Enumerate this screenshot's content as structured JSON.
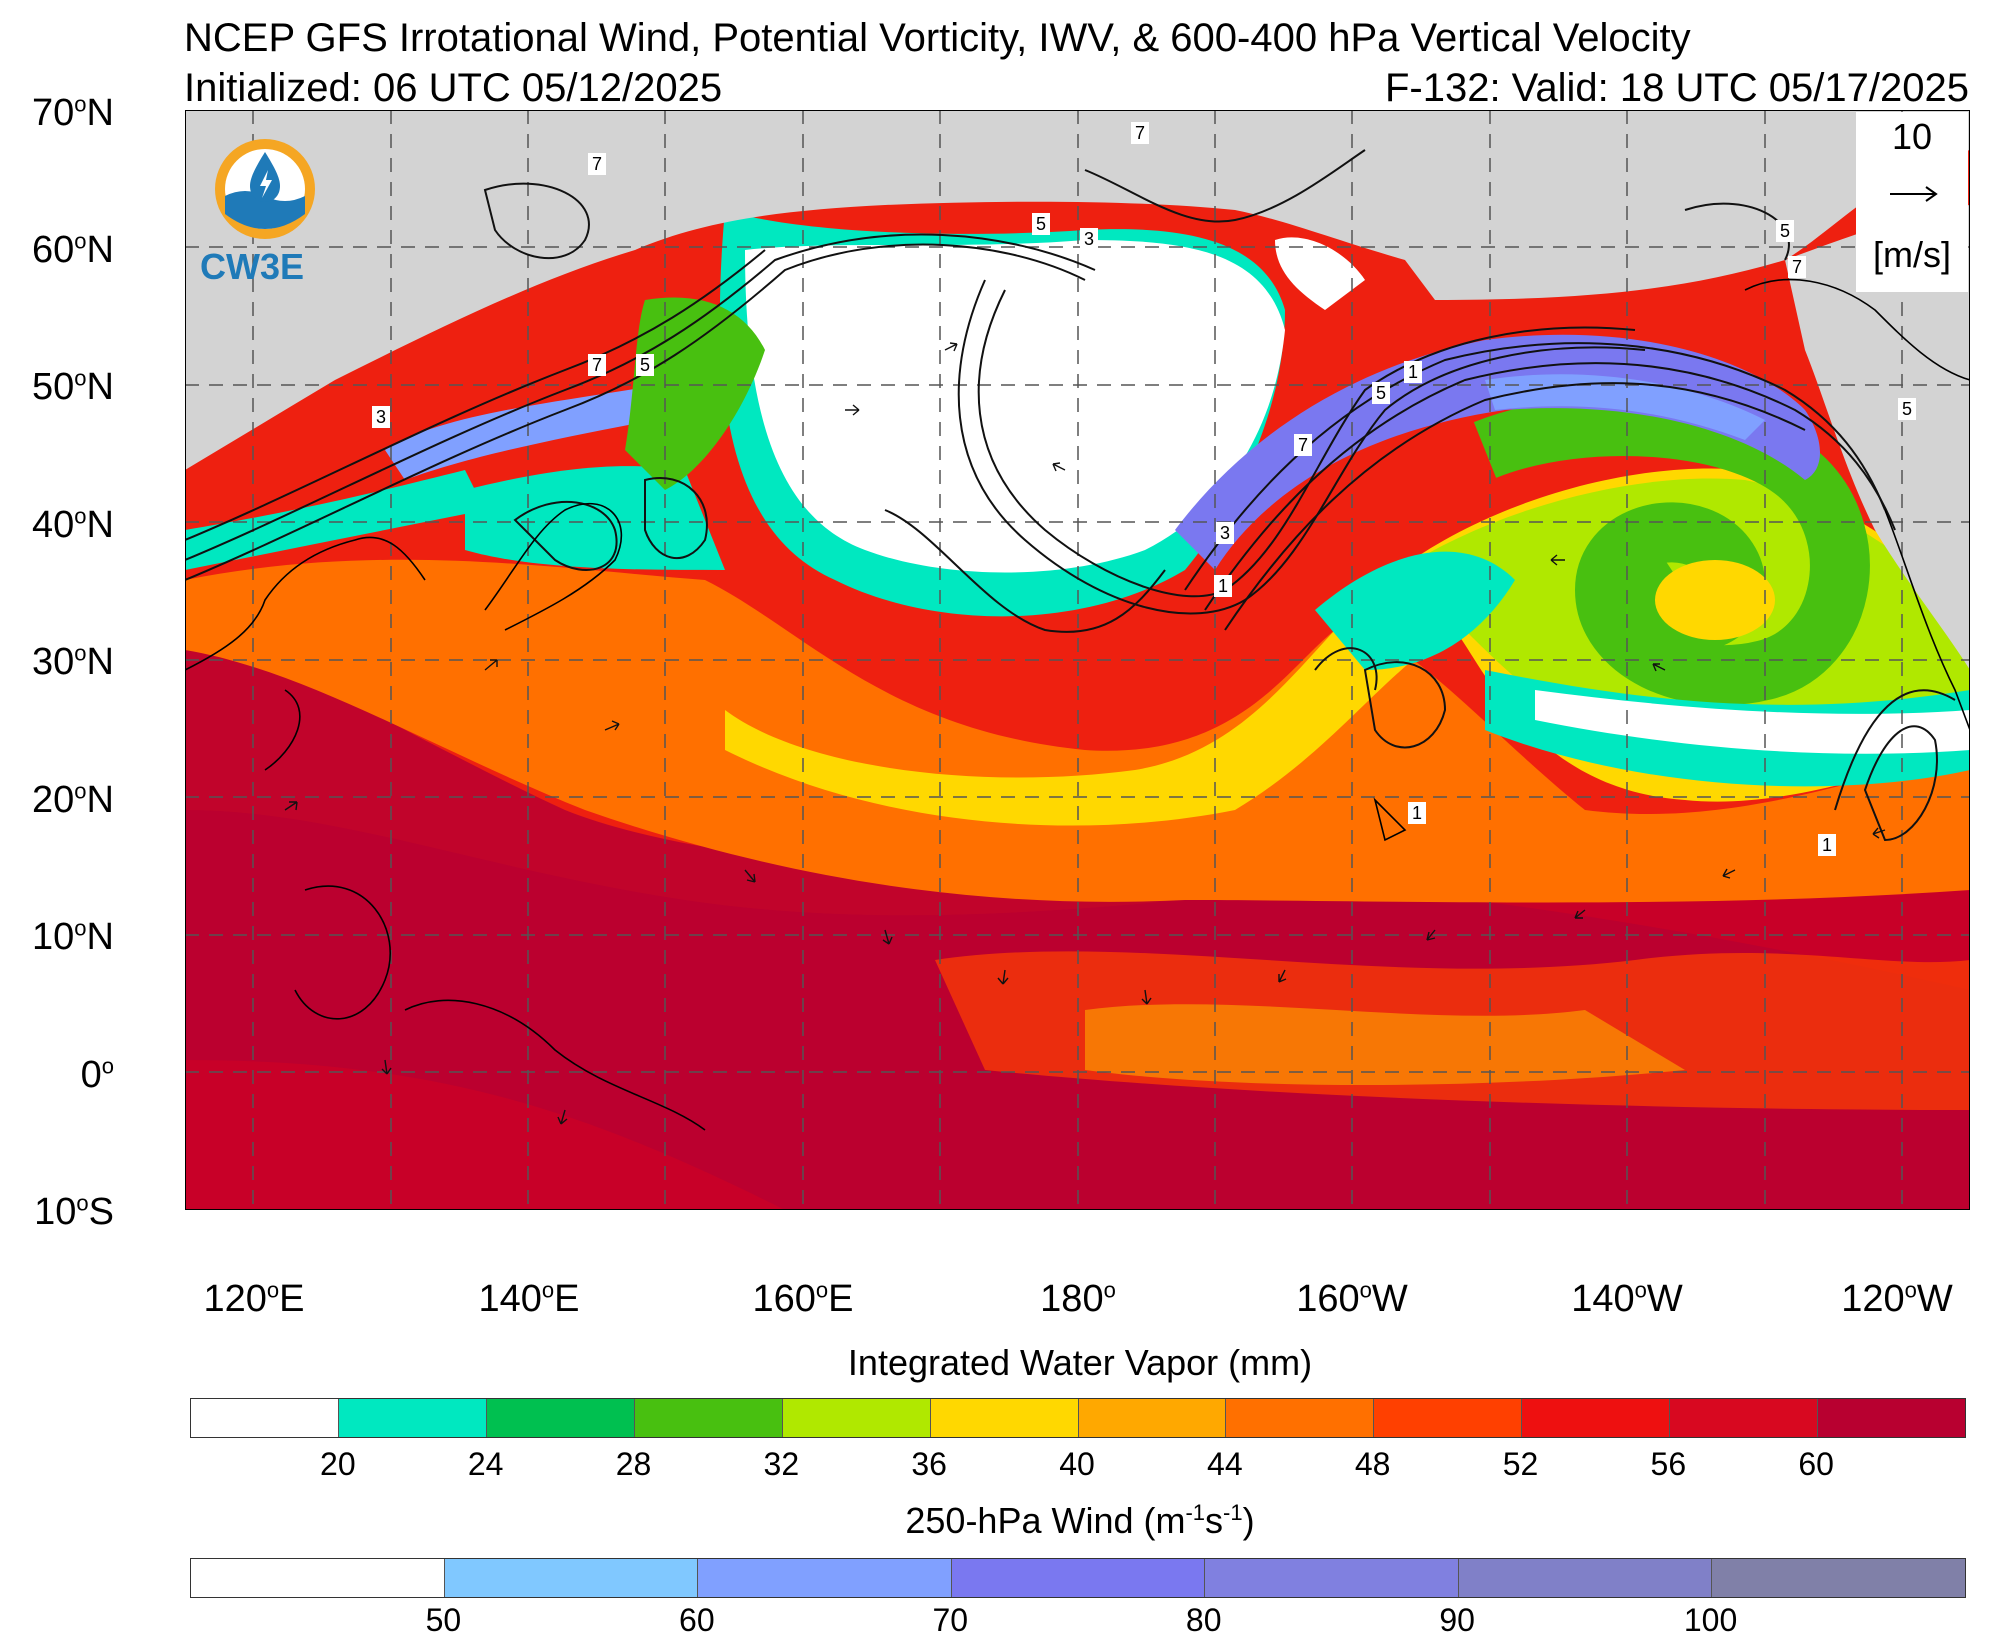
{
  "header": {
    "title": "NCEP GFS Irrotational Wind, Potential Vorticity, IWV, & 600-400 hPa Vertical Velocity",
    "initialized": "Initialized: 06 UTC 05/12/2025",
    "valid": "F-132: Valid: 18 UTC 05/17/2025"
  },
  "logo": {
    "text": "CW3E",
    "colors": {
      "ring": "#f5a623",
      "wave": "#1f7ab8"
    }
  },
  "vector_legend": {
    "magnitude": "10",
    "units": "[m/s]"
  },
  "latitude_labels": [
    {
      "deg": "70",
      "suffix": "N"
    },
    {
      "deg": "60",
      "suffix": "N"
    },
    {
      "deg": "50",
      "suffix": "N"
    },
    {
      "deg": "40",
      "suffix": "N"
    },
    {
      "deg": "30",
      "suffix": "N"
    },
    {
      "deg": "20",
      "suffix": "N"
    },
    {
      "deg": "10",
      "suffix": "N"
    },
    {
      "deg": "0",
      "suffix": ""
    },
    {
      "deg": "10",
      "suffix": "S"
    }
  ],
  "longitude_labels": [
    {
      "deg": "120",
      "suffix": "E"
    },
    {
      "deg": "140",
      "suffix": "E"
    },
    {
      "deg": "160",
      "suffix": "E"
    },
    {
      "deg": "180",
      "suffix": ""
    },
    {
      "deg": "160",
      "suffix": "W"
    },
    {
      "deg": "140",
      "suffix": "W"
    },
    {
      "deg": "120",
      "suffix": "W"
    }
  ],
  "contour_labels": [
    "7",
    "5",
    "3",
    "1",
    "5",
    "7",
    "1",
    "3",
    "5",
    "7",
    "5",
    "7",
    "3",
    "1",
    "7",
    "5",
    "1"
  ],
  "iwv_colorbar": {
    "title": "Integrated Water Vapor (mm)",
    "ticks": [
      "20",
      "24",
      "28",
      "32",
      "36",
      "40",
      "44",
      "48",
      "52",
      "56",
      "60"
    ],
    "colors": [
      "#ffffff",
      "#00e8c0",
      "#00c050",
      "#48c010",
      "#b0e800",
      "#ffd800",
      "#ffa800",
      "#ff7000",
      "#ff4000",
      "#ee1010",
      "#d80820",
      "#b80030"
    ]
  },
  "wind_colorbar": {
    "title_main": "250-hPa Wind (m",
    "title_sup1": "-1",
    "title_mid": "s",
    "title_sup2": "-1",
    "title_end": ")",
    "ticks": [
      "50",
      "60",
      "70",
      "80",
      "90",
      "100"
    ],
    "colors": [
      "#ffffff",
      "#80c8ff",
      "#80a0ff",
      "#7a78f0",
      "#8080e0",
      "#8080c8",
      "#8080a8"
    ]
  }
}
